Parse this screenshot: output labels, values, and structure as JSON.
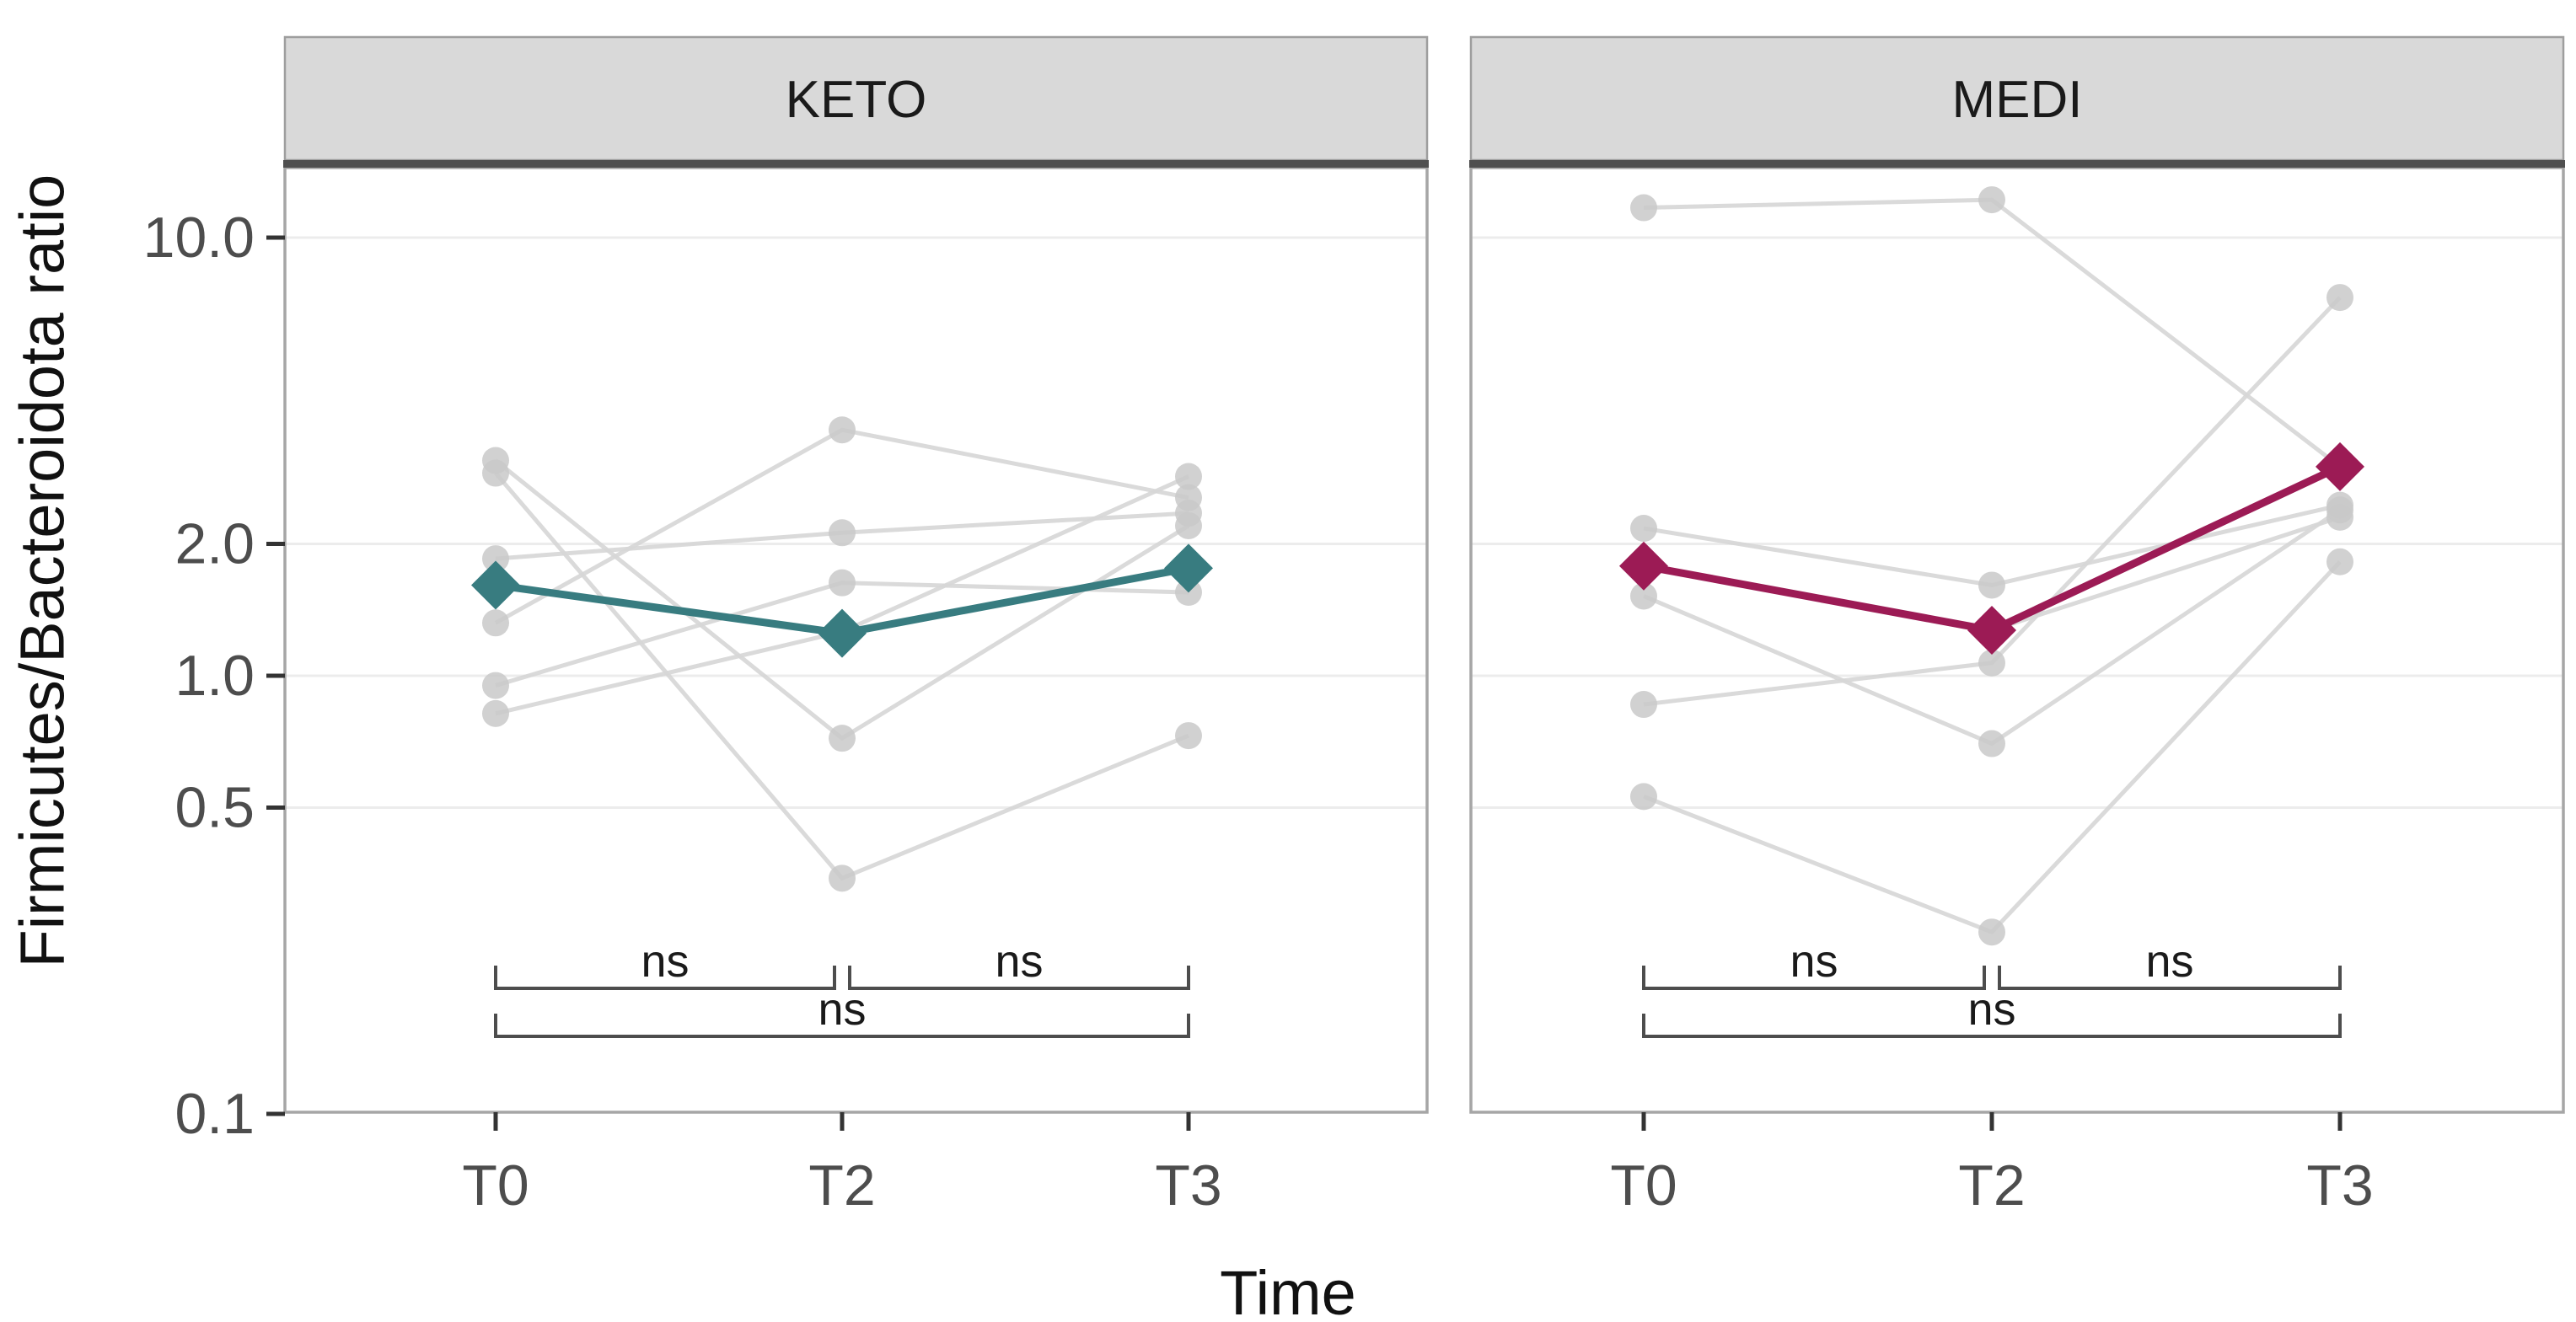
{
  "chart_data": {
    "type": "line",
    "title": "",
    "xlabel": "Time",
    "ylabel": "Firmicutes/Bacteroidota ratio",
    "x_categories": [
      "T0",
      "T2",
      "T3"
    ],
    "y_scale": "log10",
    "y_ticks": [
      10.0,
      2.0,
      1.0,
      0.5,
      0.1
    ],
    "y_tick_labels": [
      "10.0",
      "2.0",
      "1.0",
      "0.5",
      "0.1"
    ],
    "y_range": [
      0.1,
      14.5
    ],
    "grid": "major-horizontal-only",
    "legend": "none",
    "facets": [
      {
        "label": "KETO",
        "accent_color": "#387c80",
        "subjects": [
          [
            3.1,
            0.72,
            2.2
          ],
          [
            2.9,
            0.345,
            0.73
          ],
          [
            1.85,
            2.12,
            2.35
          ],
          [
            1.32,
            3.64,
            2.55
          ],
          [
            0.95,
            1.63,
            1.55
          ],
          [
            0.82,
            1.26,
            2.85
          ]
        ],
        "mean_diamonds": [
          1.61,
          1.25,
          1.76
        ]
      },
      {
        "label": "MEDI",
        "accent_color": "#9c1b55",
        "subjects": [
          [
            11.7,
            12.2,
            3.0
          ],
          [
            2.17,
            1.61,
            2.45
          ],
          [
            1.78,
            1.27,
            2.3
          ],
          [
            1.52,
            0.7,
            2.39
          ],
          [
            0.86,
            1.07,
            7.3
          ],
          [
            0.53,
            0.26,
            1.82
          ]
        ],
        "mean_diamonds": [
          1.78,
          1.27,
          3.0
        ]
      }
    ],
    "comparisons": [
      {
        "groups": [
          "T0",
          "T2"
        ],
        "label": "ns",
        "row": "upper"
      },
      {
        "groups": [
          "T2",
          "T3"
        ],
        "label": "ns",
        "row": "upper"
      },
      {
        "groups": [
          "T0",
          "T3"
        ],
        "label": "ns",
        "row": "lower"
      }
    ]
  },
  "colors": {
    "subject_line": "#d6d6d6",
    "subject_point": "#c9c9c9",
    "gridline": "#ececec",
    "panel_border": "#a6a6a6",
    "strip_background": "#d9d9d9",
    "strip_edge": "#9e9e9e",
    "strip_dark_bar": "#4f4f4f",
    "tick_mark": "#333333",
    "tick_label": "#4d4d4d",
    "title_text": "#111111",
    "bracket": "#4d4d4d",
    "ns_text": "#1a1a1a",
    "facet_keto": "#387c80",
    "facet_medi": "#9c1b55"
  }
}
